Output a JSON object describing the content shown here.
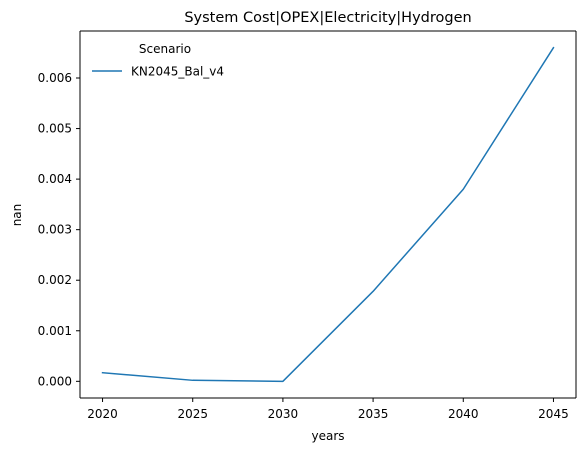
{
  "chart_data": {
    "type": "line",
    "title": "System Cost|OPEX|Electricity|Hydrogen",
    "xlabel": "years",
    "ylabel": "nan",
    "x": [
      2020,
      2025,
      2030,
      2035,
      2040,
      2045
    ],
    "xticks": [
      "2020",
      "2025",
      "2030",
      "2035",
      "2040",
      "2045"
    ],
    "yticks": [
      "0.000",
      "0.001",
      "0.002",
      "0.003",
      "0.004",
      "0.005",
      "0.006"
    ],
    "ytick_values": [
      0,
      0.001,
      0.002,
      0.003,
      0.004,
      0.005,
      0.006
    ],
    "xlim": [
      2018.75,
      2046.25
    ],
    "ylim": [
      -0.00033,
      0.00693
    ],
    "grid": false,
    "legend": {
      "title": "Scenario",
      "placement": "top-left"
    },
    "series": [
      {
        "name": "KN2045_Bal_v4",
        "color": "#1f77b4",
        "values": [
          0.00017,
          2e-05,
          0.0,
          0.00178,
          0.0038,
          0.0066
        ]
      }
    ]
  }
}
